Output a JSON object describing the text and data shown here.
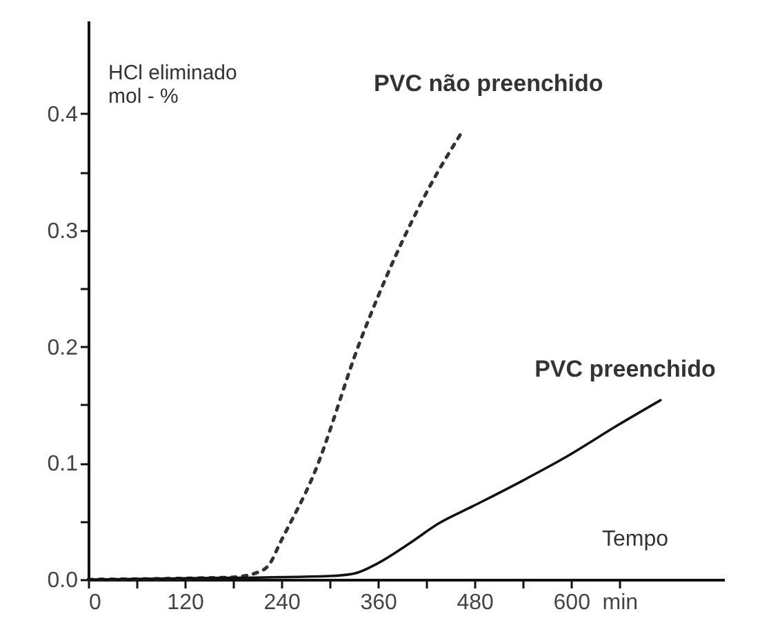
{
  "chart_data": {
    "type": "line",
    "xlabel": "Tempo",
    "ylabel": "HCl eliminado\nmol - %",
    "xlim": [
      0,
      790
    ],
    "ylim": [
      0,
      0.48
    ],
    "xticks": [
      0,
      {
        "value": 60,
        "label": null
      },
      120,
      {
        "value": 180,
        "label": null
      },
      240,
      {
        "value": 300,
        "label": null
      },
      360,
      {
        "value": 420,
        "label": null
      },
      480,
      {
        "value": 540,
        "label": null
      },
      600,
      {
        "value": 660,
        "label": "min"
      }
    ],
    "yticks": [
      {
        "value": 0,
        "label": "0.0"
      },
      {
        "value": 0.05,
        "label": null
      },
      {
        "value": 0.1,
        "label": "0.1"
      },
      {
        "value": 0.15,
        "label": null
      },
      {
        "value": 0.2,
        "label": "0.2"
      },
      {
        "value": 0.25,
        "label": null
      },
      {
        "value": 0.3,
        "label": "0.3"
      },
      {
        "value": 0.35,
        "label": null
      },
      {
        "value": 0.4,
        "label": "0.4"
      }
    ],
    "grid": false,
    "series": [
      {
        "name": "PVC não preenchido",
        "color": "#333333",
        "line_style": "dotted",
        "x": [
          0,
          120,
          180,
          210,
          225,
          238,
          280,
          338,
          423,
          463
        ],
        "values": [
          0,
          0.001,
          0.002,
          0.006,
          0.013,
          0.031,
          0.09,
          0.205,
          0.336,
          0.383
        ]
      },
      {
        "name": "PVC preenchido",
        "color": "#111111",
        "line_style": "solid",
        "x": [
          0,
          120,
          300,
          330,
          360,
          399,
          435,
          478,
          540,
          593,
          659,
          711
        ],
        "values": [
          0,
          0.001,
          0.003,
          0.005,
          0.014,
          0.031,
          0.048,
          0.063,
          0.085,
          0.105,
          0.133,
          0.154
        ]
      }
    ]
  }
}
